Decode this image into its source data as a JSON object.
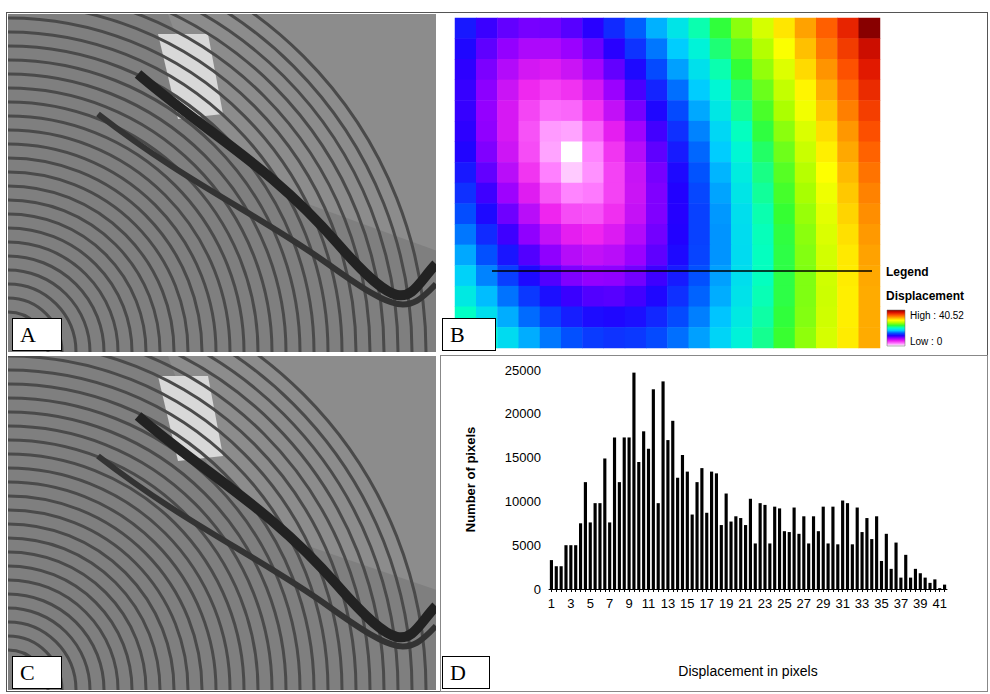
{
  "images": [
    {
      "panel_label": "A"
    },
    {
      "panel_label": "C"
    }
  ],
  "chart_data": [
    {
      "type": "heatmap",
      "panel_label": "B",
      "legend_title": "Legend",
      "legend_subtitle": "Displacement",
      "tick_labels": false,
      "color_range": [
        0,
        40.52
      ],
      "color_range_labels": [
        "Low : 0",
        "High : 40.52"
      ],
      "cells": [
        [
          12.4,
          11.0,
          10.0,
          9.5,
          9.6,
          10.3,
          11.4,
          13.0,
          14.7,
          16.7,
          18.7,
          20.8,
          23.0,
          25.3,
          27.5,
          29.8,
          32.1,
          34.4,
          36.8,
          40.52
        ],
        [
          11.8,
          10.1,
          8.8,
          8.0,
          8.0,
          8.6,
          9.8,
          11.4,
          13.3,
          15.3,
          17.4,
          19.6,
          21.9,
          24.1,
          26.4,
          28.8,
          31.1,
          33.5,
          35.8,
          38.2
        ],
        [
          11.3,
          9.4,
          7.8,
          6.7,
          6.4,
          7.0,
          8.3,
          10.0,
          11.9,
          14.1,
          16.3,
          18.5,
          20.8,
          23.1,
          25.5,
          27.8,
          30.2,
          32.6,
          34.9,
          37.3
        ],
        [
          11.1,
          9.0,
          7.0,
          5.6,
          4.9,
          5.3,
          6.7,
          8.6,
          10.6,
          12.8,
          15.1,
          17.4,
          19.8,
          22.1,
          24.5,
          26.9,
          29.3,
          31.7,
          34.1,
          36.5
        ],
        [
          11.1,
          8.8,
          6.6,
          4.7,
          3.5,
          3.7,
          5.3,
          7.3,
          9.5,
          11.8,
          14.1,
          16.5,
          18.9,
          21.3,
          23.7,
          26.1,
          28.5,
          30.9,
          33.3,
          35.7
        ],
        [
          11.3,
          8.9,
          6.6,
          4.3,
          2.3,
          2.1,
          3.9,
          6.1,
          8.4,
          10.8,
          13.2,
          15.6,
          18.0,
          20.5,
          22.9,
          25.3,
          27.7,
          30.1,
          32.5,
          35.0
        ],
        [
          11.7,
          9.3,
          6.9,
          4.5,
          2.1,
          0,
          2.8,
          5.2,
          7.7,
          10.1,
          12.5,
          14.9,
          17.4,
          19.8,
          22.2,
          24.6,
          27.1,
          29.5,
          31.9,
          34.3
        ],
        [
          12.4,
          10.0,
          7.6,
          5.2,
          2.9,
          1.2,
          2.5,
          4.8,
          7.1,
          9.5,
          11.9,
          14.4,
          16.8,
          19.2,
          21.6,
          24.0,
          26.5,
          28.9,
          31.3,
          33.7
        ],
        [
          13.2,
          10.9,
          8.5,
          6.3,
          4.2,
          2.8,
          3.1,
          4.8,
          7.0,
          9.3,
          11.6,
          14.0,
          16.4,
          18.8,
          21.2,
          23.6,
          26.0,
          28.4,
          30.8,
          33.2
        ],
        [
          14.2,
          11.9,
          9.7,
          7.6,
          5.7,
          4.5,
          4.3,
          5.4,
          7.2,
          9.3,
          11.5,
          13.8,
          16.1,
          18.4,
          20.8,
          23.2,
          25.6,
          28.0,
          30.4,
          32.8
        ],
        [
          15.3,
          13.0,
          10.9,
          8.9,
          7.3,
          6.1,
          5.7,
          6.4,
          7.8,
          9.6,
          11.6,
          13.8,
          16.0,
          18.3,
          20.6,
          22.9,
          25.3,
          27.7,
          30.0,
          32.4
        ],
        [
          16.5,
          14.3,
          12.3,
          10.4,
          8.9,
          7.7,
          7.3,
          7.6,
          8.6,
          10.1,
          11.9,
          13.9,
          16.0,
          18.2,
          20.5,
          22.8,
          25.1,
          27.4,
          29.7,
          32.1
        ],
        [
          17.7,
          15.6,
          13.7,
          11.9,
          10.4,
          9.3,
          8.8,
          8.9,
          9.6,
          10.9,
          12.5,
          14.3,
          16.3,
          18.4,
          20.5,
          22.8,
          25.0,
          27.3,
          29.6,
          31.9
        ],
        [
          19.0,
          17.0,
          15.2,
          13.5,
          12.1,
          11.0,
          10.4,
          10.3,
          10.8,
          11.8,
          13.2,
          14.8,
          16.6,
          18.6,
          20.7,
          22.8,
          25.0,
          27.2,
          29.5,
          31.8
        ],
        [
          20.4,
          18.4,
          16.6,
          15.0,
          13.7,
          12.6,
          12.0,
          11.8,
          12.1,
          12.9,
          14.1,
          15.5,
          17.2,
          19.0,
          21.0,
          23.0,
          25.1,
          27.3,
          29.5,
          31.8
        ],
        [
          21.8,
          19.9,
          18.2,
          16.6,
          15.3,
          14.3,
          13.6,
          13.3,
          13.5,
          14.1,
          15.1,
          16.3,
          17.8,
          19.5,
          21.4,
          23.3,
          25.4,
          27.5,
          29.6,
          31.8
        ]
      ]
    },
    {
      "type": "bar",
      "panel_label": "D",
      "x_label": "Displacement in pixels",
      "y_label": "Number of pixels",
      "color": "#000000",
      "grid": false,
      "categories": [
        "1",
        null,
        null,
        null,
        "3",
        null,
        null,
        null,
        "5",
        null,
        null,
        null,
        "7",
        null,
        null,
        null,
        "9",
        null,
        null,
        null,
        "11",
        null,
        null,
        null,
        "13",
        null,
        null,
        null,
        "15",
        null,
        null,
        null,
        "17",
        null,
        null,
        null,
        "19",
        null,
        null,
        null,
        "21",
        null,
        null,
        null,
        "23",
        null,
        null,
        null,
        "25",
        null,
        null,
        null,
        "27",
        null,
        null,
        null,
        "29",
        null,
        null,
        null,
        "31",
        null,
        null,
        null,
        "33",
        null,
        null,
        null,
        "35",
        null,
        null,
        null,
        "37",
        null,
        null,
        null,
        "39",
        null,
        null,
        null,
        "41",
        null
      ],
      "values": [
        3300,
        2600,
        2600,
        5000,
        5000,
        5000,
        7500,
        12200,
        7600,
        9800,
        9800,
        14900,
        7600,
        17300,
        12200,
        17300,
        17300,
        24700,
        14500,
        18000,
        16000,
        22800,
        9800,
        23700,
        17000,
        19200,
        12700,
        15300,
        13400,
        8500,
        12200,
        13800,
        8700,
        13400,
        13200,
        7300,
        10900,
        7700,
        8300,
        8100,
        7300,
        10300,
        5200,
        9800,
        9600,
        5200,
        9400,
        9200,
        6600,
        6500,
        9300,
        6300,
        8300,
        5200,
        8300,
        6600,
        9400,
        5200,
        9400,
        5100,
        10100,
        9800,
        5100,
        9300,
        6500,
        8100,
        5700,
        8300,
        3200,
        6300,
        2300,
        5300,
        1300,
        3900,
        1300,
        2300,
        1800,
        1300,
        700,
        1100,
        100,
        500
      ],
      "ylim": [
        0,
        25000
      ],
      "yticks": [
        0,
        5000,
        10000,
        15000,
        20000,
        25000
      ]
    }
  ]
}
